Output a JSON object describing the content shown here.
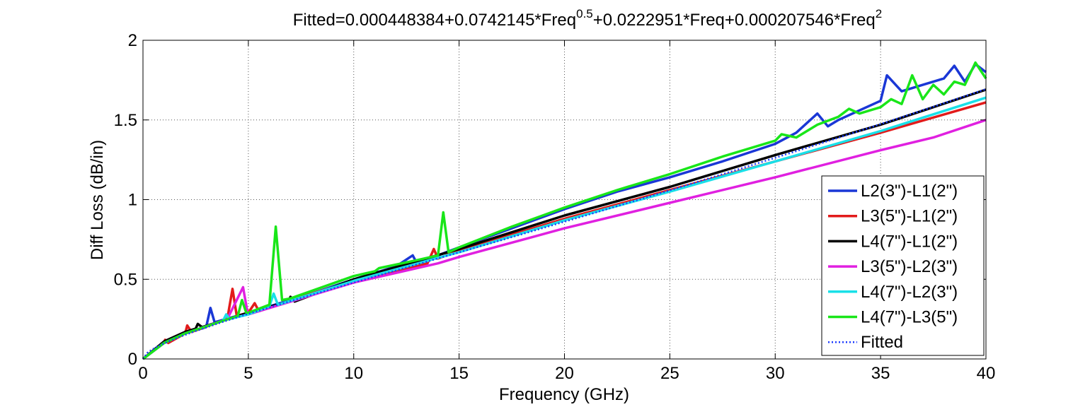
{
  "chart_data": {
    "type": "line",
    "title": {
      "prefix": "Fitted=0.000448384+0.0742145*Freq",
      "exp1": "0.5",
      "mid": "+0.0222951*Freq+0.000207546*Freq",
      "exp2": "2"
    },
    "xlabel": "Frequency (GHz)",
    "ylabel": "Diff Loss (dB/in)",
    "xlim": [
      0,
      40
    ],
    "ylim": [
      0,
      2
    ],
    "xticks": [
      0,
      5,
      10,
      15,
      20,
      25,
      30,
      35,
      40
    ],
    "yticks": [
      0,
      0.5,
      1,
      1.5,
      2
    ],
    "xtick_labels": [
      "0",
      "5",
      "10",
      "15",
      "20",
      "25",
      "30",
      "35",
      "40"
    ],
    "ytick_labels": [
      "0",
      "0.5",
      "1",
      "1.5",
      "2"
    ],
    "grid": true,
    "legend_position": "lower-right",
    "fit_coefficients": {
      "c0": 0.000448384,
      "c_sqrt": 0.0742145,
      "c1": 0.0222951,
      "c2": 0.000207546
    },
    "series": [
      {
        "name": "L2(3\")-L1(2\")",
        "color": "#1a37d6",
        "x": [
          0,
          1,
          2,
          3,
          3.2,
          3.4,
          5,
          8,
          10,
          12,
          12.8,
          13,
          15,
          17.5,
          20,
          22.5,
          25,
          27.5,
          30,
          31,
          32,
          32.5,
          33,
          34,
          35,
          35.3,
          36,
          37,
          38,
          38.5,
          39,
          39.5,
          40
        ],
        "y": [
          0,
          0.1,
          0.16,
          0.2,
          0.32,
          0.23,
          0.29,
          0.41,
          0.5,
          0.58,
          0.65,
          0.6,
          0.7,
          0.82,
          0.94,
          1.05,
          1.14,
          1.24,
          1.35,
          1.42,
          1.54,
          1.46,
          1.5,
          1.56,
          1.62,
          1.78,
          1.68,
          1.72,
          1.76,
          1.84,
          1.74,
          1.85,
          1.8
        ]
      },
      {
        "name": "L3(5\")-L1(2\")",
        "color": "#e21b1b",
        "x": [
          0,
          1,
          1.05,
          1.2,
          2,
          2.1,
          2.3,
          4,
          4.25,
          4.45,
          5,
          5.3,
          5.5,
          8,
          10,
          13.5,
          13.8,
          14,
          15,
          20,
          25,
          30,
          35,
          40
        ],
        "y": [
          0,
          0.1,
          0.12,
          0.1,
          0.16,
          0.21,
          0.17,
          0.25,
          0.44,
          0.27,
          0.29,
          0.35,
          0.3,
          0.41,
          0.49,
          0.6,
          0.69,
          0.63,
          0.68,
          0.88,
          1.06,
          1.24,
          1.42,
          1.61
        ]
      },
      {
        "name": "L4(7\")-L1(2\")",
        "color": "#000000",
        "x": [
          0,
          1,
          2,
          2.5,
          2.6,
          2.8,
          5,
          6.9,
          7,
          7.2,
          10,
          15,
          20,
          25,
          30,
          35,
          40
        ],
        "y": [
          0,
          0.11,
          0.17,
          0.19,
          0.22,
          0.2,
          0.29,
          0.36,
          0.39,
          0.36,
          0.5,
          0.69,
          0.9,
          1.08,
          1.28,
          1.47,
          1.69
        ]
      },
      {
        "name": "L3(5\")-L2(3\")",
        "color": "#e020e0",
        "x": [
          0,
          1,
          2,
          4,
          4.75,
          4.95,
          5,
          8,
          10,
          14,
          15,
          20,
          25,
          30,
          35,
          37.5,
          40
        ],
        "y": [
          0,
          0.1,
          0.16,
          0.25,
          0.45,
          0.3,
          0.28,
          0.4,
          0.48,
          0.6,
          0.64,
          0.82,
          0.98,
          1.14,
          1.31,
          1.39,
          1.5
        ]
      },
      {
        "name": "L4(7\")-L2(3\")",
        "color": "#19e0e8",
        "x": [
          0,
          1,
          2,
          3.8,
          3.95,
          4.1,
          5,
          6,
          6.2,
          6.4,
          10,
          15,
          20,
          25,
          30,
          35,
          40
        ],
        "y": [
          0,
          0.1,
          0.16,
          0.24,
          0.28,
          0.25,
          0.28,
          0.33,
          0.41,
          0.34,
          0.49,
          0.67,
          0.87,
          1.05,
          1.24,
          1.43,
          1.64
        ]
      },
      {
        "name": "L4(7\")-L3(5\")",
        "color": "#19e619",
        "x": [
          0,
          1,
          2,
          4.5,
          4.7,
          4.9,
          5,
          6,
          6.3,
          6.6,
          7,
          10,
          11,
          11.2,
          13,
          14,
          14.25,
          14.5,
          15,
          17.5,
          20,
          22.5,
          25,
          27.5,
          30,
          30.3,
          31,
          32,
          33,
          33.5,
          34,
          35,
          35.5,
          36,
          36.5,
          37,
          37.5,
          38,
          38.5,
          39,
          39.5,
          40
        ],
        "y": [
          0,
          0.1,
          0.16,
          0.27,
          0.37,
          0.29,
          0.29,
          0.34,
          0.83,
          0.37,
          0.38,
          0.52,
          0.55,
          0.57,
          0.62,
          0.65,
          0.92,
          0.67,
          0.7,
          0.83,
          0.95,
          1.06,
          1.16,
          1.27,
          1.37,
          1.41,
          1.39,
          1.47,
          1.52,
          1.57,
          1.54,
          1.58,
          1.63,
          1.6,
          1.78,
          1.63,
          1.72,
          1.66,
          1.74,
          1.72,
          1.86,
          1.76
        ]
      }
    ],
    "fitted_series": {
      "name": "Fitted",
      "color": "#1e3cff",
      "style": "dotted"
    }
  }
}
